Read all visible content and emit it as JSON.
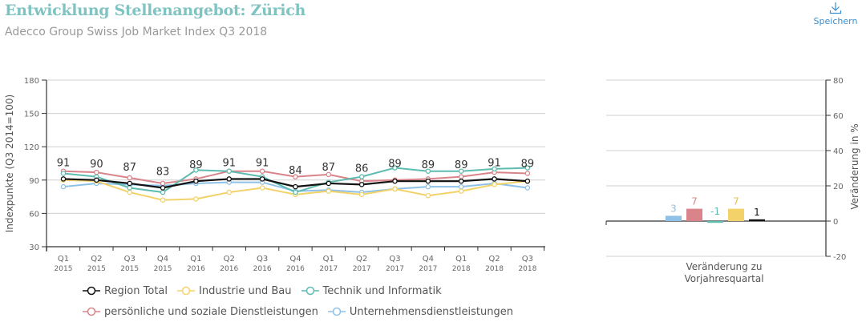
{
  "header": {
    "title": "Entwicklung Stellenangebot: Zürich",
    "subtitle": "Adecco Group Swiss Job Market Index Q3 2018",
    "save_label": "Speichern",
    "save_icon": "download-icon",
    "title_color": "#7fc3c2",
    "save_color": "#3a8fd0"
  },
  "chart_data": [
    {
      "type": "line",
      "ylabel": "Indexpunkte (Q3 2014=100)",
      "xlabel": "",
      "ylim": [
        30,
        180
      ],
      "yticks": [
        30,
        60,
        90,
        120,
        150,
        180
      ],
      "grid": true,
      "legend_position": "bottom",
      "x": [
        {
          "q": "Q1",
          "y": "2015"
        },
        {
          "q": "Q2",
          "y": "2015"
        },
        {
          "q": "Q3",
          "y": "2015"
        },
        {
          "q": "Q4",
          "y": "2015"
        },
        {
          "q": "Q1",
          "y": "2016"
        },
        {
          "q": "Q2",
          "y": "2016"
        },
        {
          "q": "Q3",
          "y": "2016"
        },
        {
          "q": "Q4",
          "y": "2016"
        },
        {
          "q": "Q1",
          "y": "2017"
        },
        {
          "q": "Q2",
          "y": "2017"
        },
        {
          "q": "Q3",
          "y": "2017"
        },
        {
          "q": "Q4",
          "y": "2017"
        },
        {
          "q": "Q1",
          "y": "2018"
        },
        {
          "q": "Q2",
          "y": "2018"
        },
        {
          "q": "Q3",
          "y": "2018"
        }
      ],
      "data_labels": [
        "91",
        "90",
        "87",
        "83",
        "89",
        "91",
        "91",
        "84",
        "87",
        "86",
        "89",
        "89",
        "89",
        "91",
        "89"
      ],
      "series": [
        {
          "name": "Unternehmensdienstleistungen",
          "color": "#8fc1e8",
          "values": [
            84,
            87,
            86,
            85,
            87,
            88,
            88,
            80,
            81,
            79,
            82,
            84,
            84,
            87,
            83
          ]
        },
        {
          "name": "Industrie und Bau",
          "color": "#f3d26a",
          "values": [
            90,
            89,
            79,
            72,
            73,
            79,
            83,
            77,
            80,
            77,
            82,
            76,
            80,
            86,
            89
          ]
        },
        {
          "name": "persönliche und soziale Dienstleistungen",
          "color": "#d9848a",
          "values": [
            98,
            97,
            92,
            87,
            91,
            98,
            98,
            93,
            95,
            89,
            90,
            91,
            93,
            97,
            96
          ]
        },
        {
          "name": "Technik und Informatik",
          "color": "#5ebcb0",
          "values": [
            96,
            93,
            83,
            79,
            99,
            98,
            93,
            79,
            88,
            93,
            101,
            98,
            98,
            100,
            101
          ]
        },
        {
          "name": "Region Total",
          "color": "#111111",
          "values": [
            91,
            90,
            87,
            83,
            89,
            91,
            91,
            84,
            87,
            86,
            89,
            89,
            89,
            91,
            89
          ]
        }
      ]
    },
    {
      "type": "bar",
      "title": "Veränderung zu Vorjahresquartal",
      "ylabel": "Veränderung in %",
      "ylim": [
        -20,
        80
      ],
      "yticks": [
        -20,
        0,
        20,
        40,
        60,
        80
      ],
      "grid": true,
      "categories": [
        "Unternehmensdienstleistungen",
        "persönliche und soziale Dienstleistungen",
        "Technik und Informatik",
        "Industrie und Bau",
        "Region Total"
      ],
      "values": [
        3,
        7,
        -1,
        7,
        1
      ],
      "labels": [
        "3",
        "7",
        "-1",
        "7",
        "1"
      ],
      "colors": [
        "#8fc1e8",
        "#d9848a",
        "#5ebcb0",
        "#f3d26a",
        "#111111"
      ]
    }
  ],
  "legend": {
    "rows": [
      [
        {
          "label": "Region Total",
          "color": "#111111"
        },
        {
          "label": "Industrie und Bau",
          "color": "#f3d26a"
        },
        {
          "label": "Technik und Informatik",
          "color": "#5ebcb0"
        }
      ],
      [
        {
          "label": "persönliche und soziale Dienstleistungen",
          "color": "#d9848a"
        },
        {
          "label": "Unternehmensdienstleistungen",
          "color": "#8fc1e8"
        }
      ]
    ]
  }
}
